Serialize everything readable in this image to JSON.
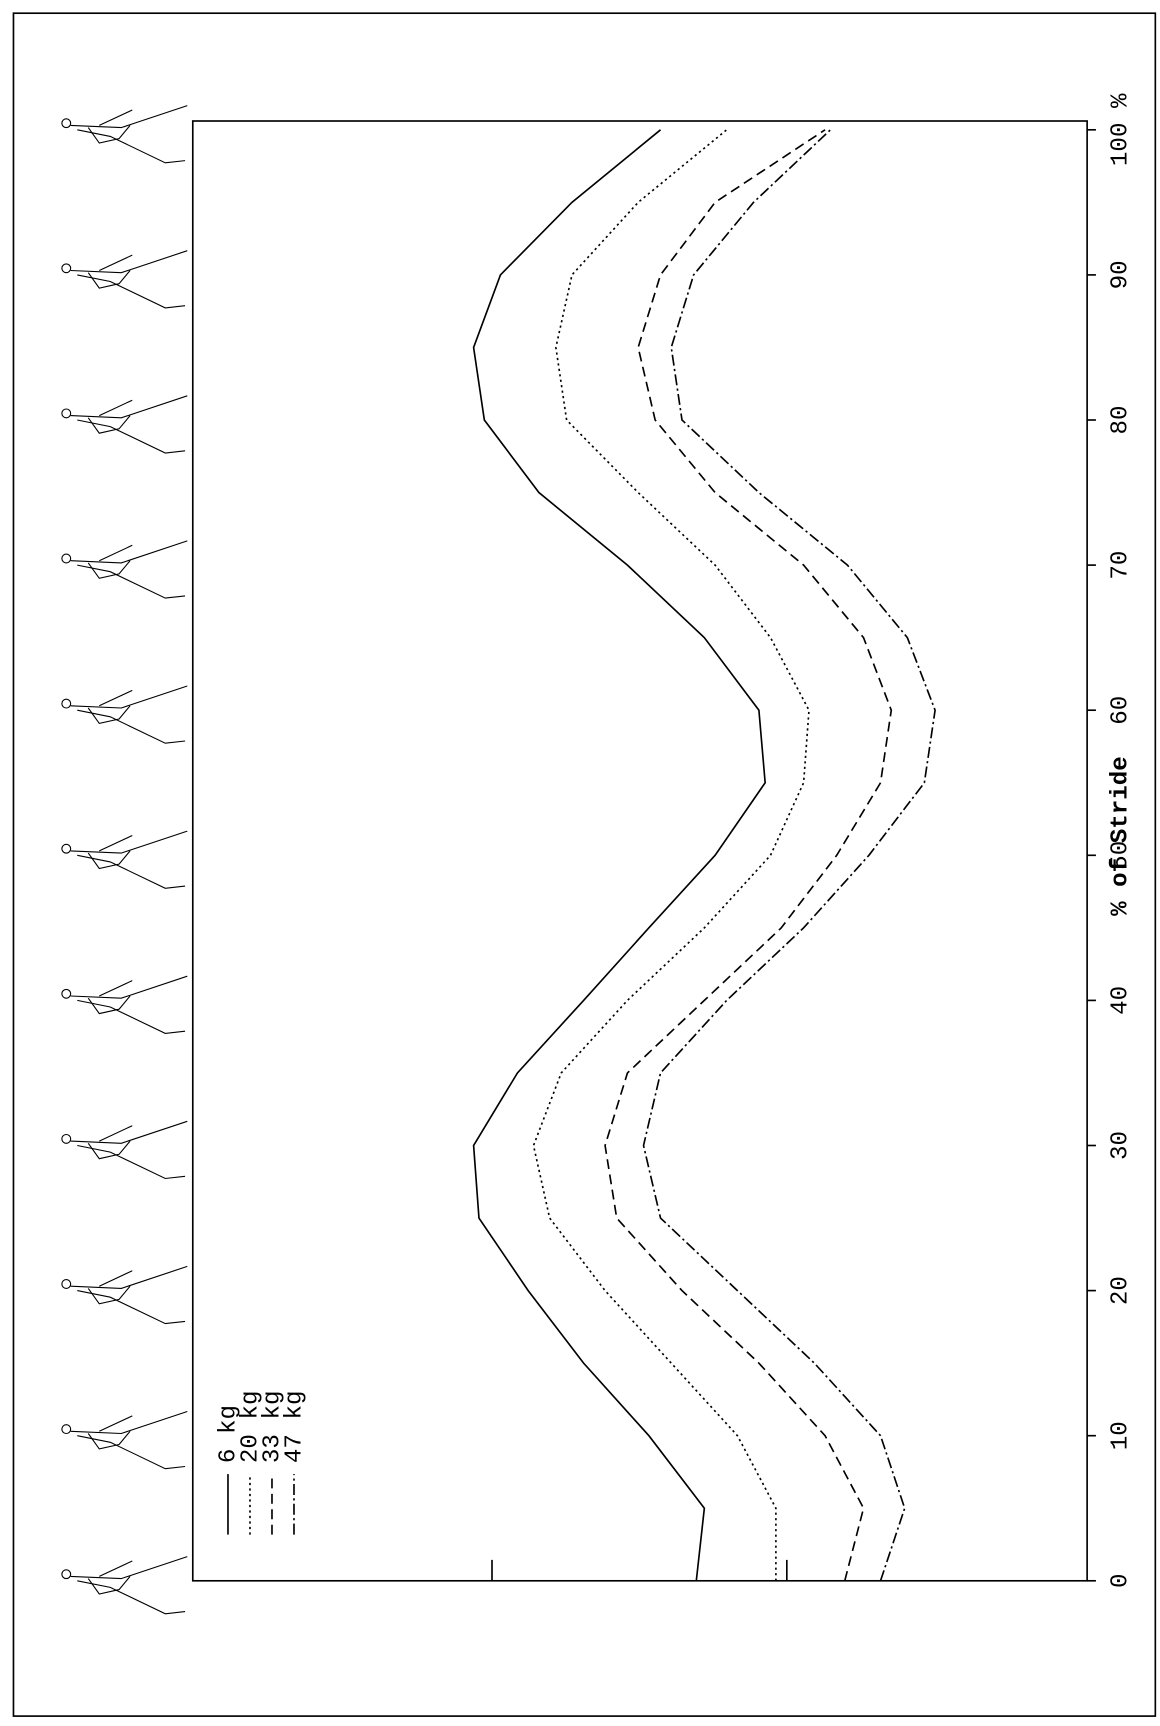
{
  "chart_data": {
    "type": "line",
    "xlabel": "% of Stride",
    "x": [
      0,
      5,
      10,
      15,
      20,
      25,
      30,
      35,
      40,
      45,
      50,
      55,
      60,
      65,
      70,
      75,
      80,
      85,
      90,
      95,
      100
    ],
    "xlim": [
      0,
      100
    ],
    "xticks": [
      0,
      10,
      20,
      30,
      40,
      50,
      60,
      70,
      80,
      90,
      {
        "value": 100,
        "label": "100 %"
      }
    ],
    "ylim": [
      0,
      100
    ],
    "series": [
      {
        "name": "6 kg",
        "color": "#000000",
        "dash": "none",
        "values": [
          56.3,
          57.2,
          51.0,
          43.7,
          37.5,
          32.0,
          31.4,
          36.3,
          43.7,
          51.0,
          58.4,
          64.0,
          63.3,
          57.2,
          48.6,
          38.7,
          32.6,
          31.4,
          34.4,
          42.4,
          52.3
        ]
      },
      {
        "name": "20 kg",
        "color": "#000000",
        "dash": "2,3",
        "values": [
          65.2,
          65.2,
          60.9,
          53.5,
          46.1,
          39.9,
          38.1,
          41.2,
          48.6,
          57.2,
          64.6,
          68.3,
          68.9,
          64.6,
          58.4,
          49.8,
          41.8,
          40.6,
          42.4,
          49.8,
          59.7
        ]
      },
      {
        "name": "33 kg",
        "color": "#000000",
        "dash": "9,5",
        "values": [
          72.9,
          75.0,
          70.7,
          63.3,
          54.7,
          47.4,
          46.1,
          48.6,
          57.2,
          65.8,
          72.0,
          76.9,
          78.1,
          75.0,
          68.3,
          58.4,
          51.7,
          49.8,
          52.3,
          58.4,
          70.7
        ]
      },
      {
        "name": "47 kg",
        "color": "#000000",
        "dash": "10,3,2,3",
        "values": [
          76.9,
          79.6,
          76.9,
          69.5,
          60.9,
          52.3,
          50.4,
          52.3,
          59.7,
          68.3,
          75.6,
          81.8,
          83.0,
          79.9,
          73.2,
          63.3,
          54.7,
          53.5,
          56.0,
          62.7,
          71.3
        ]
      }
    ]
  }
}
